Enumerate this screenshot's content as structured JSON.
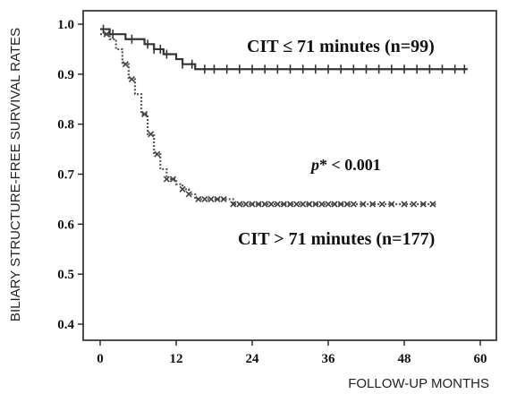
{
  "chart_data": {
    "type": "line",
    "xlabel": "FOLLOW-UP MONTHS",
    "ylabel": "BILIARY STRUCTURE-FREE SURVIVAL RATES",
    "xlim": [
      0,
      60
    ],
    "ylim": [
      0.4,
      1.0
    ],
    "x_ticks": [
      0,
      12,
      24,
      36,
      48,
      60
    ],
    "y_ticks": [
      0.4,
      0.5,
      0.6,
      0.7,
      0.8,
      0.9,
      1.0
    ],
    "grid": false,
    "annotations": {
      "p_symbol": "p",
      "p_rest": "* < 0.001"
    },
    "series": [
      {
        "name": "CIT ≤ 71 minutes (n=99)",
        "line_style": "solid",
        "color": "#333333",
        "steps": [
          [
            0,
            0.99
          ],
          [
            1.5,
            0.98
          ],
          [
            4,
            0.97
          ],
          [
            7,
            0.96
          ],
          [
            8.5,
            0.95
          ],
          [
            10,
            0.94
          ],
          [
            12,
            0.93
          ],
          [
            13,
            0.92
          ],
          [
            15,
            0.91
          ],
          [
            58,
            0.91
          ]
        ],
        "censored_x": [
          0.5,
          2,
          5,
          7.5,
          8.5,
          9.5,
          10.5,
          13,
          14.5,
          16.5,
          18,
          20,
          22,
          24,
          26,
          28,
          30,
          32,
          34,
          36,
          38,
          40,
          42,
          44,
          46,
          48,
          50,
          52,
          54,
          56,
          57.5
        ]
      },
      {
        "name": "CIT > 71 minutes (n=177)",
        "line_style": "dotted",
        "color": "#555555",
        "steps": [
          [
            0,
            0.98
          ],
          [
            1.5,
            0.97
          ],
          [
            2.5,
            0.95
          ],
          [
            3.5,
            0.92
          ],
          [
            4.5,
            0.89
          ],
          [
            5.5,
            0.86
          ],
          [
            6.5,
            0.82
          ],
          [
            7.5,
            0.78
          ],
          [
            8.5,
            0.74
          ],
          [
            9.5,
            0.71
          ],
          [
            10.5,
            0.69
          ],
          [
            12,
            0.68
          ],
          [
            13,
            0.67
          ],
          [
            14,
            0.66
          ],
          [
            15,
            0.65
          ],
          [
            21,
            0.64
          ],
          [
            53,
            0.64
          ]
        ],
        "censored_x": [
          1,
          4,
          5,
          7,
          8,
          9,
          10.5,
          11.5,
          13,
          14,
          15.5,
          16.5,
          17.5,
          18.5,
          19.5,
          21,
          22,
          23,
          24,
          25,
          26,
          27,
          28,
          29,
          30,
          31,
          32,
          33,
          34,
          35,
          36,
          37,
          38,
          39,
          40,
          41.5,
          43,
          44.5,
          46,
          48,
          49.5,
          51,
          52.5
        ]
      }
    ]
  }
}
